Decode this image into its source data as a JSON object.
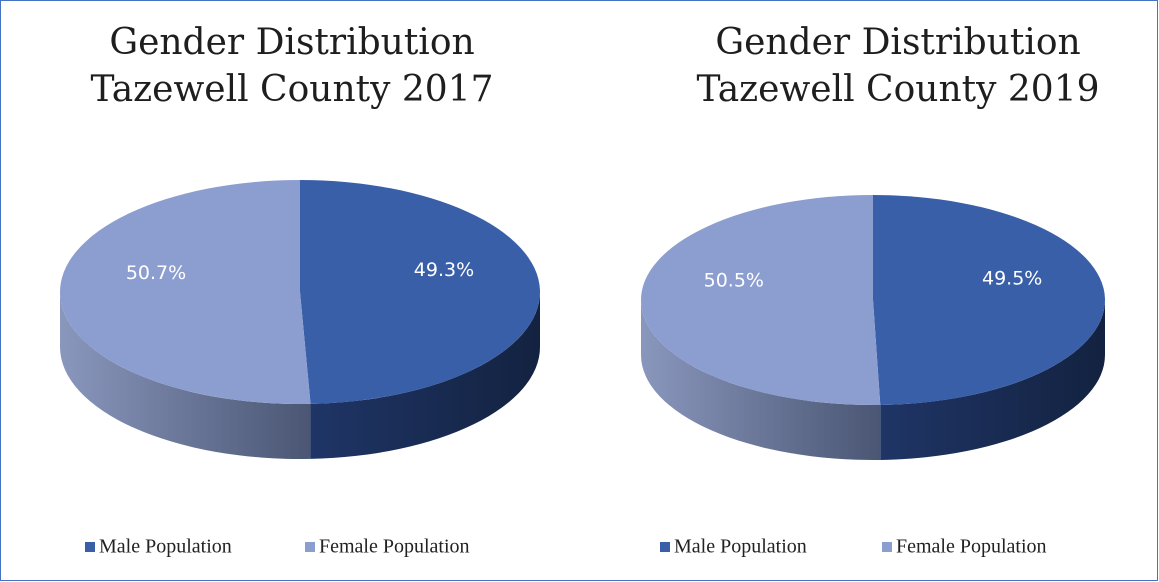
{
  "chart_data": [
    {
      "type": "pie",
      "title": [
        "Gender Distribution",
        "Tazewell County 2017"
      ],
      "categories": [
        "Male Population",
        "Female Population"
      ],
      "values": [
        49.3,
        50.7
      ],
      "value_labels": [
        "49.3%",
        "50.7%"
      ],
      "colors": [
        "#3a5fa9",
        "#8c9ed0"
      ],
      "legend": "bottom"
    },
    {
      "type": "pie",
      "title": [
        "Gender Distribution",
        "Tazewell County 2019"
      ],
      "categories": [
        "Male Population",
        "Female Population"
      ],
      "values": [
        49.5,
        50.5
      ],
      "value_labels": [
        "49.5%",
        "50.5%"
      ],
      "colors": [
        "#3a5fa9",
        "#8c9ed0"
      ],
      "legend": "bottom"
    }
  ]
}
